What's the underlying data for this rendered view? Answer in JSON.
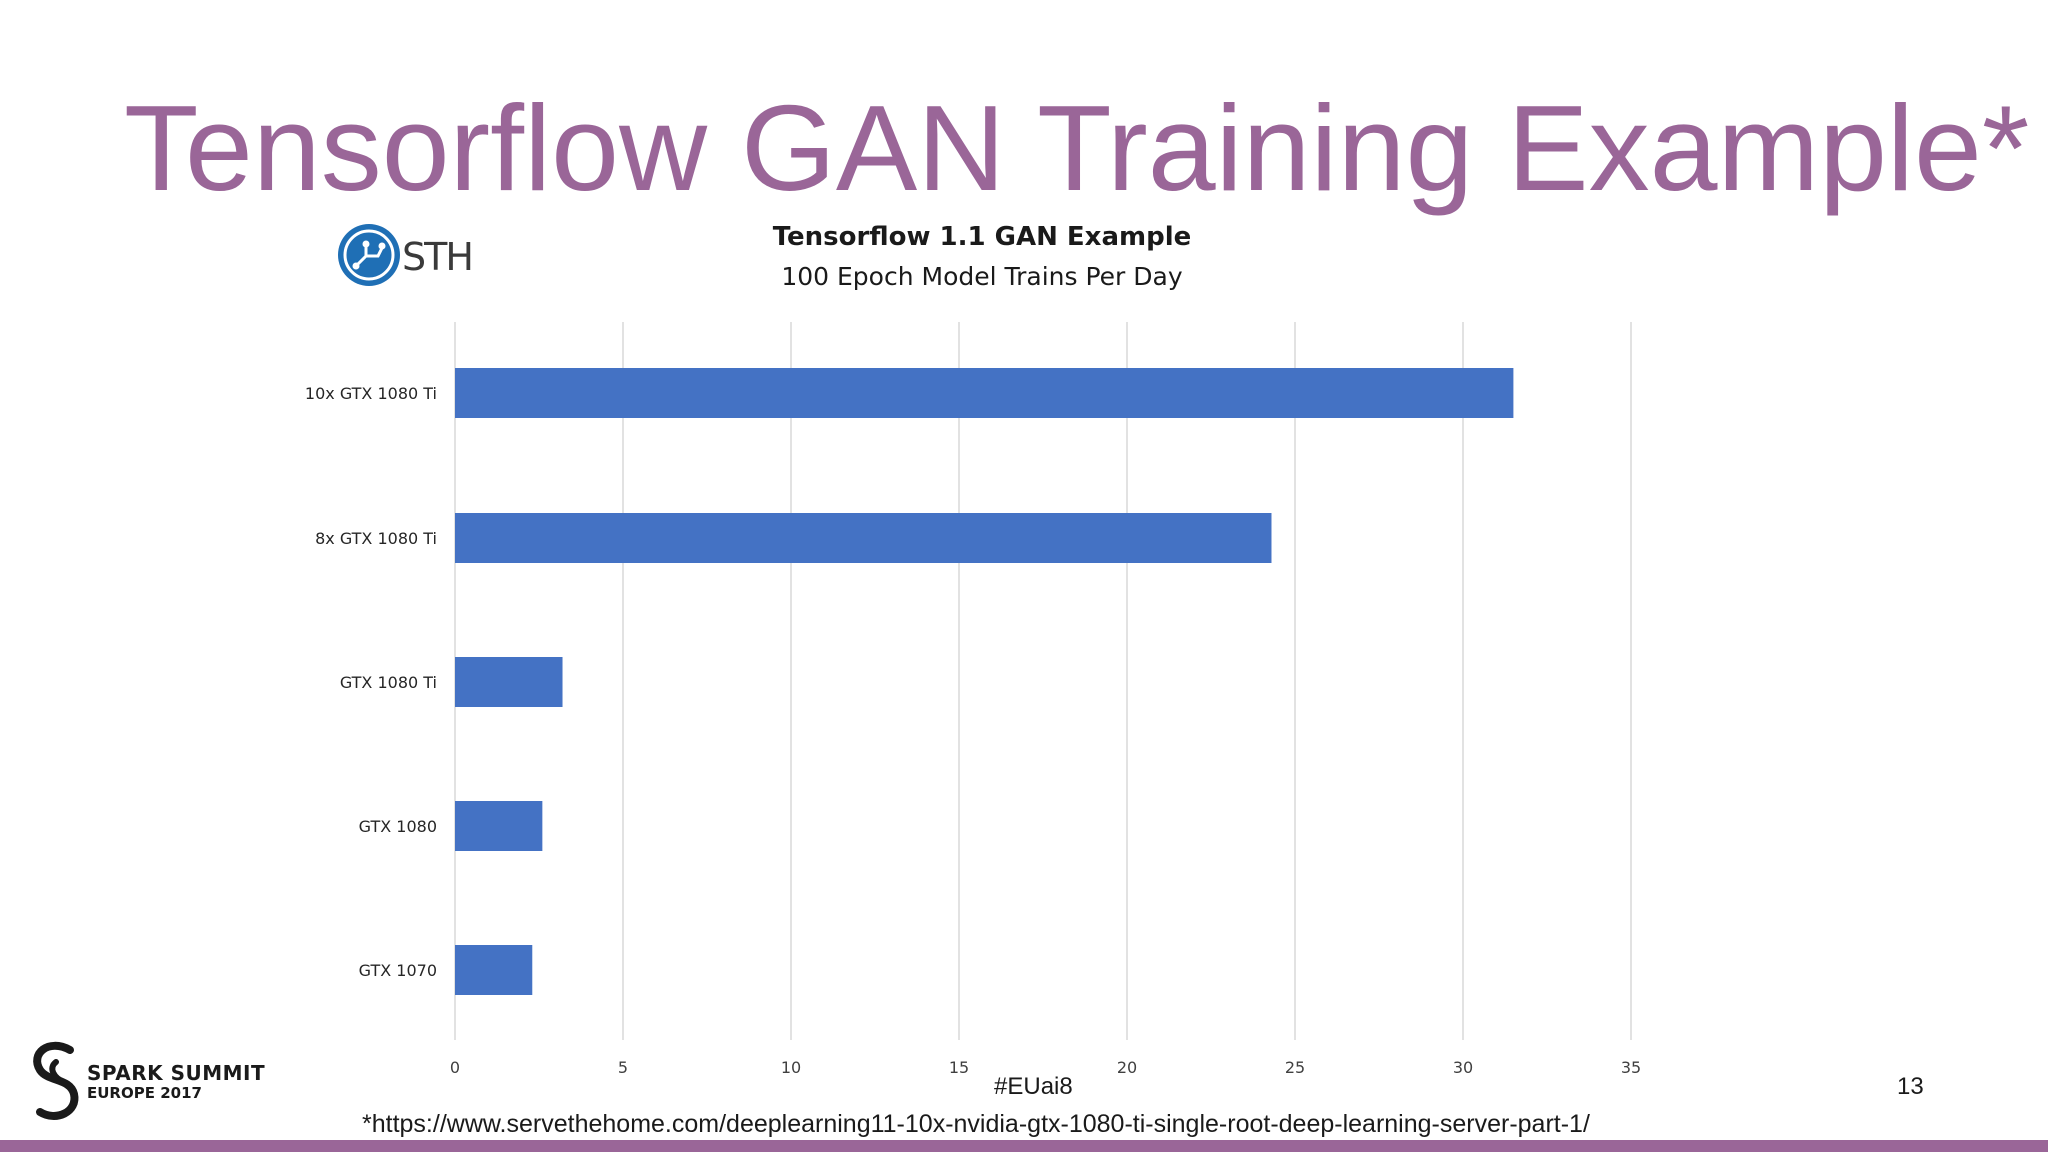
{
  "slide": {
    "title": "Tensorflow GAN Training Example*",
    "hashtag": "#EUai8",
    "page_number": "13",
    "footnote": "*https://www.servethehome.com/deeplearning11-10x-nvidia-gtx-1080-ti-single-root-deep-learning-server-part-1/",
    "accent_color": "#9a6698"
  },
  "logos": {
    "sth_text": "STH",
    "spark_name": "SPARK SUMMIT",
    "spark_sub": "EUROPE 2017"
  },
  "chart_data": {
    "type": "bar",
    "orientation": "horizontal",
    "title": "Tensorflow 1.1 GAN Example",
    "subtitle": "100 Epoch Model Trains Per Day",
    "categories": [
      "10x GTX 1080 Ti",
      "8x GTX 1080 Ti",
      "GTX 1080 Ti",
      "GTX 1080",
      "GTX 1070"
    ],
    "values": [
      31.5,
      24.3,
      3.2,
      2.6,
      2.3
    ],
    "xlim": [
      0,
      35
    ],
    "xticks": [
      0,
      5,
      10,
      15,
      20,
      25,
      30,
      35
    ],
    "grid": true,
    "bar_color": "#4472c4"
  }
}
